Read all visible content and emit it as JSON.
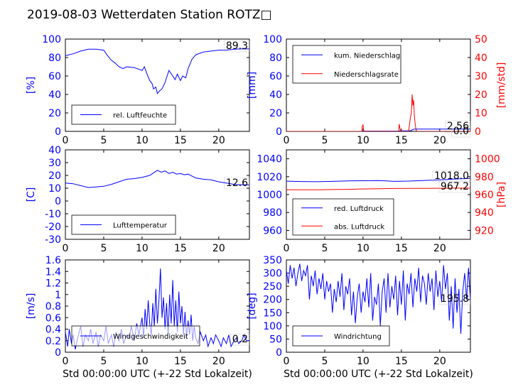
{
  "title": "2019-08-03 Wetterdaten Station ROTZ□",
  "colors": {
    "primary": "#0000ff",
    "secondary": "#ff0000",
    "text": "#000000"
  },
  "chart_data": [
    {
      "id": "humidity",
      "type": "line",
      "ylabel": "[%]",
      "xlim": [
        0,
        24
      ],
      "ylim": [
        0,
        100
      ],
      "xticks": [
        0,
        5,
        10,
        15,
        20
      ],
      "yticks": [
        0,
        20,
        40,
        60,
        80,
        100
      ],
      "legend": "bottom-left",
      "current_value": "89.3",
      "series": [
        {
          "name": "rel. Luftfeuchte",
          "color": "#0000ff",
          "x": [
            0,
            1,
            2,
            3,
            4,
            5,
            5.5,
            6,
            6.5,
            7,
            7.5,
            8,
            9,
            10,
            10.3,
            10.6,
            11,
            11.3,
            11.5,
            11.8,
            12,
            12.3,
            12.6,
            13,
            13.5,
            14,
            14.3,
            14.6,
            15,
            15.3,
            15.7,
            16,
            16.5,
            17,
            18,
            19,
            20,
            21,
            22,
            23,
            24
          ],
          "y": [
            82,
            84,
            87,
            89,
            89,
            88,
            82,
            77,
            74,
            70,
            68,
            70,
            69,
            66,
            70,
            63,
            55,
            52,
            46,
            48,
            41,
            44,
            46,
            53,
            66,
            60,
            56,
            62,
            55,
            60,
            58,
            68,
            78,
            83,
            86,
            87,
            88,
            88,
            89,
            89.3,
            89.3
          ]
        }
      ]
    },
    {
      "id": "precipitation",
      "type": "line",
      "ylabel": "[mm]",
      "y2label": "[mm/std]",
      "xlim": [
        0,
        24
      ],
      "ylim": [
        0,
        100
      ],
      "y2lim": [
        0,
        50
      ],
      "xticks": [
        0,
        5,
        10,
        15,
        20
      ],
      "yticks": [
        0,
        20,
        40,
        60,
        80,
        100
      ],
      "y2ticks": [
        0,
        10,
        20,
        30,
        40,
        50
      ],
      "legend": "top-left",
      "current_values": [
        "2.56",
        "0.0"
      ],
      "series": [
        {
          "name": "kum. Niederschlag",
          "color": "#0000ff",
          "axis": "left",
          "x": [
            0,
            9.9,
            10,
            14.7,
            14.8,
            16.2,
            16.4,
            16.6,
            17,
            24
          ],
          "y": [
            0,
            0,
            0.3,
            0.3,
            0.6,
            0.6,
            1.6,
            2.4,
            2.56,
            2.56
          ]
        },
        {
          "name": "Niederschlagsrate",
          "color": "#ff0000",
          "axis": "right",
          "x": [
            0,
            9.85,
            9.9,
            10,
            10.1,
            14.65,
            14.7,
            14.8,
            14.9,
            15.9,
            16,
            16.1,
            16.2,
            16.3,
            16.4,
            16.5,
            16.6,
            16.7,
            16.8,
            16.9,
            17,
            24
          ],
          "y": [
            0,
            0,
            3,
            3.5,
            0,
            0,
            4,
            2,
            0,
            0,
            2,
            5,
            8,
            10,
            20,
            14,
            17,
            8,
            4,
            1,
            0,
            0
          ]
        }
      ]
    },
    {
      "id": "temperature",
      "type": "line",
      "ylabel": "[C]",
      "xlim": [
        0,
        24
      ],
      "ylim": [
        -30,
        40
      ],
      "xticks": [
        0,
        5,
        10,
        15,
        20
      ],
      "yticks": [
        -30,
        -20,
        -10,
        0,
        10,
        20,
        30,
        40
      ],
      "legend": "bottom-left",
      "current_value": "12.6",
      "series": [
        {
          "name": "Lufttemperatur",
          "color": "#0000ff",
          "x": [
            0,
            1,
            2,
            3,
            4,
            5,
            6,
            7,
            8,
            9,
            10,
            11,
            11.5,
            12,
            12.5,
            13,
            13.5,
            14,
            14.5,
            15,
            15.5,
            16,
            16.5,
            17,
            18,
            19,
            20,
            21,
            22,
            23,
            24
          ],
          "y": [
            14,
            13.5,
            12,
            10.5,
            11,
            11.5,
            13,
            15,
            17,
            17.5,
            18.5,
            20,
            22,
            24,
            22.5,
            23.5,
            21.5,
            22.5,
            21,
            21.5,
            20.5,
            21,
            19.5,
            18,
            17,
            16.5,
            15,
            14,
            13,
            12.6,
            12.6
          ]
        }
      ]
    },
    {
      "id": "pressure",
      "type": "line",
      "ylabel": "",
      "y2label": "[hPa]",
      "xlim": [
        0,
        24
      ],
      "ylim": [
        950,
        1050
      ],
      "y2lim": [
        910,
        1010
      ],
      "xticks": [
        0,
        5,
        10,
        15,
        20
      ],
      "yticks": [
        960,
        980,
        1000,
        1020,
        1040
      ],
      "y2ticks": [
        920,
        940,
        960,
        980,
        1000
      ],
      "legend": "bottom-left",
      "current_values": [
        "1018.0",
        "967.2"
      ],
      "series": [
        {
          "name": "red. Luftdruck",
          "color": "#0000ff",
          "axis": "left",
          "x": [
            0,
            2,
            4,
            6,
            8,
            10,
            12,
            13,
            14,
            16,
            18,
            20,
            22,
            24
          ],
          "y": [
            1015,
            1014.6,
            1014.4,
            1014.8,
            1015.2,
            1015.5,
            1015.6,
            1015.2,
            1014.8,
            1015.1,
            1015.8,
            1016.5,
            1017.4,
            1018
          ]
        },
        {
          "name": "abs. Luftdruck",
          "color": "#ff0000",
          "axis": "right",
          "x": [
            0,
            2,
            4,
            6,
            8,
            10,
            12,
            14,
            16,
            18,
            20,
            22,
            24
          ],
          "y": [
            965.5,
            965.4,
            965.4,
            965.6,
            965.9,
            966.3,
            966.6,
            966.8,
            966.9,
            967,
            967.1,
            967.2,
            967.2
          ]
        }
      ]
    },
    {
      "id": "windspeed",
      "type": "line",
      "ylabel": "[m/s]",
      "xlabel": "Std 00:00:00 UTC (+-22 Std Lokalzeit)",
      "xlim": [
        0,
        24
      ],
      "ylim": [
        0,
        1.6
      ],
      "xticks": [
        0,
        5,
        10,
        15,
        20
      ],
      "yticks": [
        0,
        0.2,
        0.4,
        0.6,
        0.8,
        1.0,
        1.2,
        1.4,
        1.6
      ],
      "legend": "bottom-left",
      "current_value": "0.2",
      "series": [
        {
          "name": "Windgeschwindigkeit",
          "color": "#0000ff",
          "x": [
            0,
            0.3,
            0.5,
            0.8,
            1,
            1.3,
            1.6,
            2,
            2.3,
            2.6,
            3,
            3.3,
            3.6,
            4,
            4.3,
            4.6,
            5,
            5.3,
            5.6,
            6,
            6.3,
            6.6,
            7,
            7.3,
            7.6,
            8,
            8.3,
            8.6,
            9,
            9.3,
            9.6,
            10,
            10.2,
            10.4,
            10.6,
            10.8,
            11,
            11.2,
            11.4,
            11.6,
            11.8,
            12,
            12.2,
            12.4,
            12.6,
            12.8,
            13,
            13.2,
            13.4,
            13.6,
            13.8,
            14,
            14.2,
            14.4,
            14.6,
            14.8,
            15,
            15.2,
            15.4,
            15.6,
            15.8,
            16,
            16.2,
            16.4,
            16.6,
            16.8,
            17,
            17.3,
            17.6,
            18,
            18.3,
            18.6,
            19,
            19.3,
            19.6,
            20,
            20.3,
            20.6,
            21,
            21.3,
            21.6,
            22,
            22.3,
            22.6,
            23,
            23.3,
            23.6,
            24
          ],
          "y": [
            0.35,
            0.1,
            0.4,
            0.15,
            0.3,
            0.05,
            0.25,
            0.45,
            0.1,
            0.3,
            0.2,
            0.4,
            0.15,
            0.35,
            0.1,
            0.3,
            0.2,
            0.45,
            0.15,
            0.3,
            0.1,
            0.35,
            0.2,
            0.4,
            0.15,
            0.3,
            0.25,
            0.45,
            0.2,
            0.5,
            0.3,
            0.6,
            0.25,
            0.75,
            0.4,
            0.9,
            0.5,
            0.3,
            0.85,
            0.45,
            1.1,
            0.5,
            0.9,
            1.45,
            0.6,
            0.95,
            0.4,
            0.85,
            0.3,
            1.0,
            0.5,
            1.25,
            0.45,
            0.9,
            0.35,
            1.05,
            0.5,
            0.8,
            0.3,
            0.7,
            0.25,
            0.55,
            0.3,
            0.65,
            0.2,
            0.45,
            0.25,
            0.15,
            0.35,
            0.2,
            0.3,
            0.1,
            0.25,
            0.15,
            0.3,
            0.2,
            0.1,
            0.25,
            0.15,
            0.3,
            0.1,
            0.2,
            0.25,
            0.15,
            0.2,
            0.3,
            0.2,
            0.2
          ]
        }
      ]
    },
    {
      "id": "winddirection",
      "type": "line",
      "ylabel": "[deg]",
      "xlabel": "Std 00:00:00 UTC (+-22 Std Lokalzeit)",
      "xlim": [
        0,
        24
      ],
      "ylim": [
        0,
        350
      ],
      "xticks": [
        0,
        5,
        10,
        15,
        20
      ],
      "yticks": [
        0,
        50,
        100,
        150,
        200,
        250,
        300,
        350
      ],
      "legend": "bottom-left",
      "current_value": "195.8",
      "series": [
        {
          "name": "Windrichtung",
          "color": "#0000ff",
          "x": [
            0,
            0.25,
            0.5,
            0.75,
            1,
            1.25,
            1.5,
            1.75,
            2,
            2.25,
            2.5,
            2.75,
            3,
            3.25,
            3.5,
            3.75,
            4,
            4.25,
            4.5,
            4.75,
            5,
            5.25,
            5.5,
            5.75,
            6,
            6.25,
            6.5,
            6.75,
            7,
            7.25,
            7.5,
            7.75,
            8,
            8.25,
            8.5,
            8.75,
            9,
            9.25,
            9.5,
            9.75,
            10,
            10.25,
            10.5,
            10.75,
            11,
            11.25,
            11.5,
            11.75,
            12,
            12.25,
            12.5,
            12.75,
            13,
            13.25,
            13.5,
            13.75,
            14,
            14.25,
            14.5,
            14.75,
            15,
            15.25,
            15.5,
            15.75,
            16,
            16.25,
            16.5,
            16.75,
            17,
            17.25,
            17.5,
            17.75,
            18,
            18.25,
            18.5,
            18.75,
            19,
            19.25,
            19.5,
            19.75,
            20,
            20.25,
            20.5,
            20.75,
            21,
            21.25,
            21.5,
            21.75,
            22,
            22.25,
            22.5,
            22.75,
            23,
            23.25,
            23.5,
            23.75,
            24
          ],
          "y": [
            310,
            260,
            330,
            280,
            320,
            250,
            300,
            335,
            270,
            310,
            290,
            330,
            200,
            290,
            250,
            310,
            220,
            280,
            240,
            300,
            200,
            270,
            230,
            260,
            150,
            240,
            190,
            270,
            210,
            300,
            160,
            250,
            220,
            280,
            140,
            230,
            110,
            210,
            260,
            150,
            230,
            190,
            280,
            170,
            300,
            120,
            210,
            180,
            260,
            100,
            230,
            280,
            150,
            300,
            170,
            250,
            200,
            290,
            140,
            270,
            180,
            310,
            120,
            260,
            220,
            300,
            170,
            280,
            230,
            320,
            190,
            290,
            260,
            180,
            300,
            230,
            280,
            160,
            310,
            210,
            270,
            190,
            330,
            240,
            300,
            120,
            250,
            90,
            280,
            150,
            240,
            70,
            230,
            300,
            200,
            320,
            195.8
          ]
        }
      ]
    }
  ]
}
